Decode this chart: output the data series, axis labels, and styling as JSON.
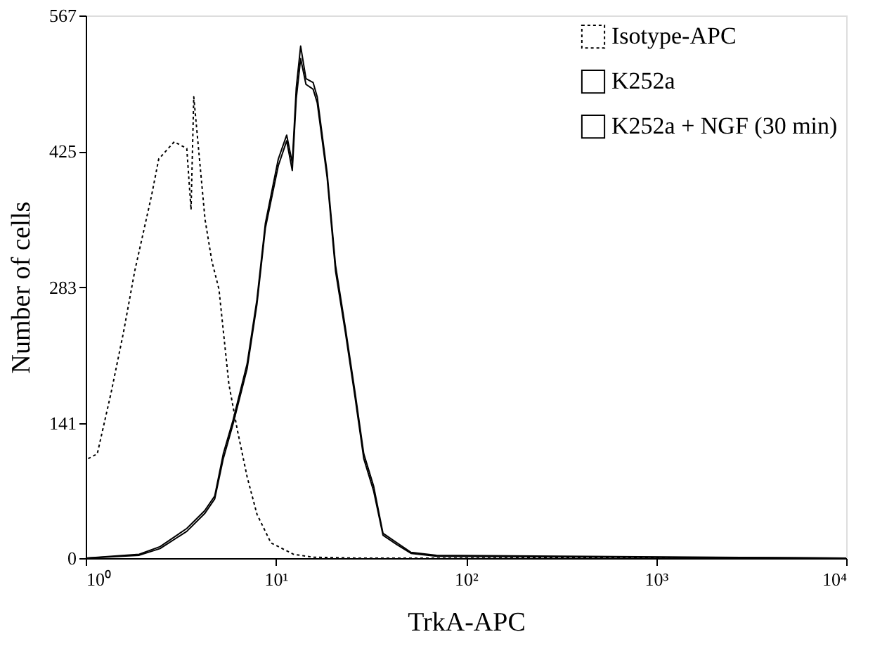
{
  "chart_data": {
    "type": "line",
    "xlabel": "TrkA-APC",
    "ylabel": "Number of cells",
    "log": "x",
    "xlim": [
      1,
      10000
    ],
    "xticks": [
      {
        "value": 1,
        "label": "10⁰"
      },
      {
        "value": 10,
        "label": "10¹"
      },
      {
        "value": 100,
        "label": "10²"
      },
      {
        "value": 1000,
        "label": "10³"
      },
      {
        "value": 10000,
        "label": "10⁴"
      }
    ],
    "ylim": [
      0,
      567
    ],
    "yticks": [
      0,
      141,
      283,
      425,
      567
    ],
    "grid": false,
    "legend": "top right",
    "marker": "none",
    "series": [
      {
        "name": "Isotype-APC",
        "color": "#000000",
        "line_style": "dotted",
        "x": [
          1.03,
          1.15,
          1.36,
          1.58,
          1.81,
          2.22,
          2.42,
          2.92,
          3.4,
          3.58,
          3.7,
          4.24,
          4.61,
          5.02,
          5.66,
          6.27,
          7.06,
          7.95,
          9.42,
          12.4,
          15.7,
          27.5,
          10000
        ],
        "values": [
          104,
          109,
          173,
          236,
          300,
          379,
          417,
          435,
          428,
          364,
          482,
          354,
          310,
          281,
          182,
          134,
          85,
          46,
          16,
          4,
          1,
          0,
          0
        ]
      },
      {
        "name": "K252a",
        "color": "#000000",
        "line_style": "solid",
        "x": [
          1.0,
          1.91,
          2.46,
          3.4,
          4.24,
          4.77,
          5.29,
          5.95,
          7.06,
          7.95,
          8.81,
          10.3,
          11.4,
          12.2,
          12.8,
          13.5,
          14.4,
          15.7,
          16.5,
          18.6,
          20.6,
          23.2,
          26.1,
          29.0,
          32.7,
          36.6,
          43.4,
          51.4,
          70,
          10000
        ],
        "values": [
          0,
          4,
          12,
          31,
          50,
          65,
          109,
          144,
          203,
          270,
          350,
          417,
          442,
          413,
          491,
          535,
          501,
          497,
          482,
          403,
          306,
          241,
          173,
          109,
          75,
          26,
          16,
          6,
          3,
          0
        ]
      },
      {
        "name": "K252a + NGF (30 min)",
        "color": "#000000",
        "line_style": "solid",
        "x": [
          1.0,
          1.91,
          2.46,
          3.4,
          4.24,
          4.77,
          5.29,
          5.95,
          7.06,
          7.95,
          8.81,
          10.3,
          11.4,
          12.2,
          12.8,
          13.5,
          14.4,
          15.7,
          16.5,
          18.6,
          20.6,
          23.2,
          26.1,
          29.0,
          32.7,
          36.6,
          43.4,
          51.4,
          70,
          10000
        ],
        "values": [
          0,
          3,
          10,
          28,
          47,
          62,
          104,
          140,
          198,
          265,
          345,
          410,
          436,
          405,
          480,
          522,
          495,
          490,
          476,
          398,
          300,
          236,
          168,
          104,
          70,
          24,
          14,
          5,
          2,
          0
        ]
      }
    ]
  }
}
